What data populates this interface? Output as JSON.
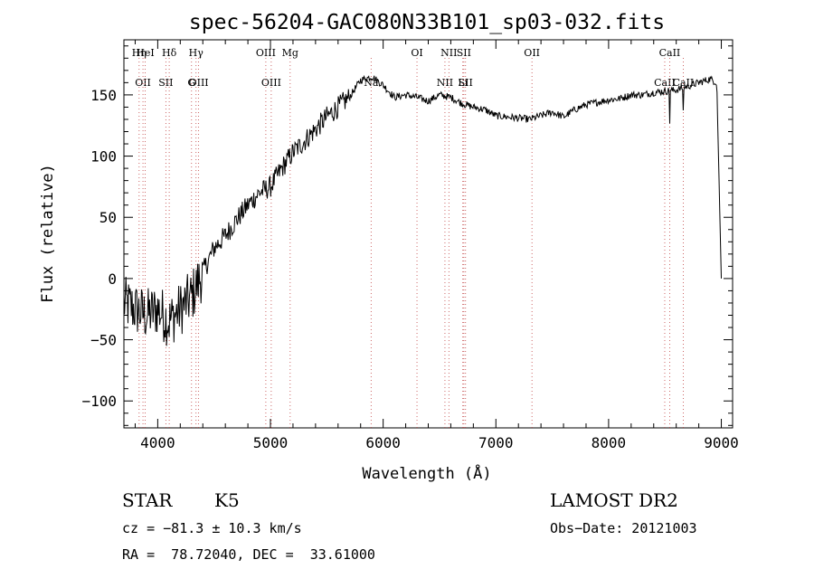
{
  "chart_data": {
    "type": "line",
    "title": "spec-56204-GAC080N33B101_sp03-032.fits",
    "xlabel": "Wavelength (Å)",
    "ylabel": "Flux (relative)",
    "xlim": [
      3700,
      9100
    ],
    "ylim": [
      -122,
      195
    ],
    "xticks": [
      4000,
      5000,
      6000,
      7000,
      8000,
      9000
    ],
    "xtick_labels": [
      "4000",
      "5000",
      "6000",
      "7000",
      "8000",
      "9000"
    ],
    "yticks": [
      -100,
      -50,
      0,
      50,
      100,
      150
    ],
    "ytick_labels": [
      "−100",
      "−50",
      "0",
      "50",
      "100",
      "150"
    ],
    "grid": false,
    "series": [
      {
        "x": [
          3700,
          3800,
          3900,
          4000,
          4100,
          4200,
          4300,
          4400,
          4500,
          4600,
          4700,
          4800,
          4900,
          5000,
          5100,
          5200,
          5300,
          5400,
          5500,
          5600,
          5700,
          5800,
          5900,
          6000,
          6100,
          6200,
          6300,
          6400,
          6500,
          6600,
          6700,
          6800,
          6900,
          7000,
          7100,
          7200,
          7300,
          7400,
          7500,
          7600,
          7700,
          7800,
          7900,
          8000,
          8100,
          8200,
          8300,
          8400,
          8500,
          8600,
          8700,
          8800,
          8900,
          8960,
          9000
        ],
        "y": [
          -20,
          -25,
          -30,
          -25,
          -35,
          -25,
          -15,
          5,
          25,
          35,
          48,
          60,
          70,
          75,
          90,
          103,
          112,
          122,
          132,
          140,
          148,
          162,
          165,
          158,
          148,
          150,
          148,
          145,
          150,
          148,
          143,
          140,
          138,
          133,
          132,
          131,
          130,
          133,
          136,
          132,
          138,
          142,
          144,
          146,
          147,
          150,
          150,
          152,
          153,
          154,
          157,
          160,
          163,
          160,
          0
        ]
      }
    ],
    "lines": [
      {
        "x": 3835,
        "labels": [
          "Hη"
        ]
      },
      {
        "x": 3869,
        "labels": [
          "OII"
        ]
      },
      {
        "x": 3889,
        "labels": [
          "HeI"
        ]
      },
      {
        "x": 4072,
        "labels": [
          "SII"
        ]
      },
      {
        "x": 4102,
        "labels": [
          "Hδ"
        ]
      },
      {
        "x": 4300,
        "labels": [
          "G"
        ]
      },
      {
        "x": 4340,
        "labels": [
          "Hγ"
        ]
      },
      {
        "x": 4363,
        "labels": [
          "OIII"
        ]
      },
      {
        "x": 4959,
        "labels": [
          "OIII"
        ]
      },
      {
        "x": 5007,
        "labels": [
          "OIII"
        ]
      },
      {
        "x": 5175,
        "labels": [
          "Mg"
        ]
      },
      {
        "x": 5893,
        "labels": [
          "Na"
        ]
      },
      {
        "x": 6300,
        "labels": [
          "OI"
        ]
      },
      {
        "x": 6548,
        "labels": [
          "NII"
        ]
      },
      {
        "x": 6583,
        "labels": [
          "NII"
        ]
      },
      {
        "x": 6707,
        "labels": [
          "Li"
        ]
      },
      {
        "x": 6716,
        "labels": [
          "SII"
        ]
      },
      {
        "x": 6731,
        "labels": [
          "SII"
        ]
      },
      {
        "x": 7320,
        "labels": [
          "OII"
        ]
      },
      {
        "x": 8498,
        "labels": [
          "CaII"
        ]
      },
      {
        "x": 8542,
        "labels": [
          "CaII"
        ]
      },
      {
        "x": 8662,
        "labels": [
          "CaII"
        ]
      }
    ]
  },
  "info": {
    "class": "STAR",
    "subclass": "K5",
    "survey": "LAMOST DR2",
    "cz": "cz = −81.3 ± 10.3 km/s",
    "obsdate": "Obs−Date: 20121003",
    "radec": "RA =  78.72040, DEC =  33.61000"
  }
}
